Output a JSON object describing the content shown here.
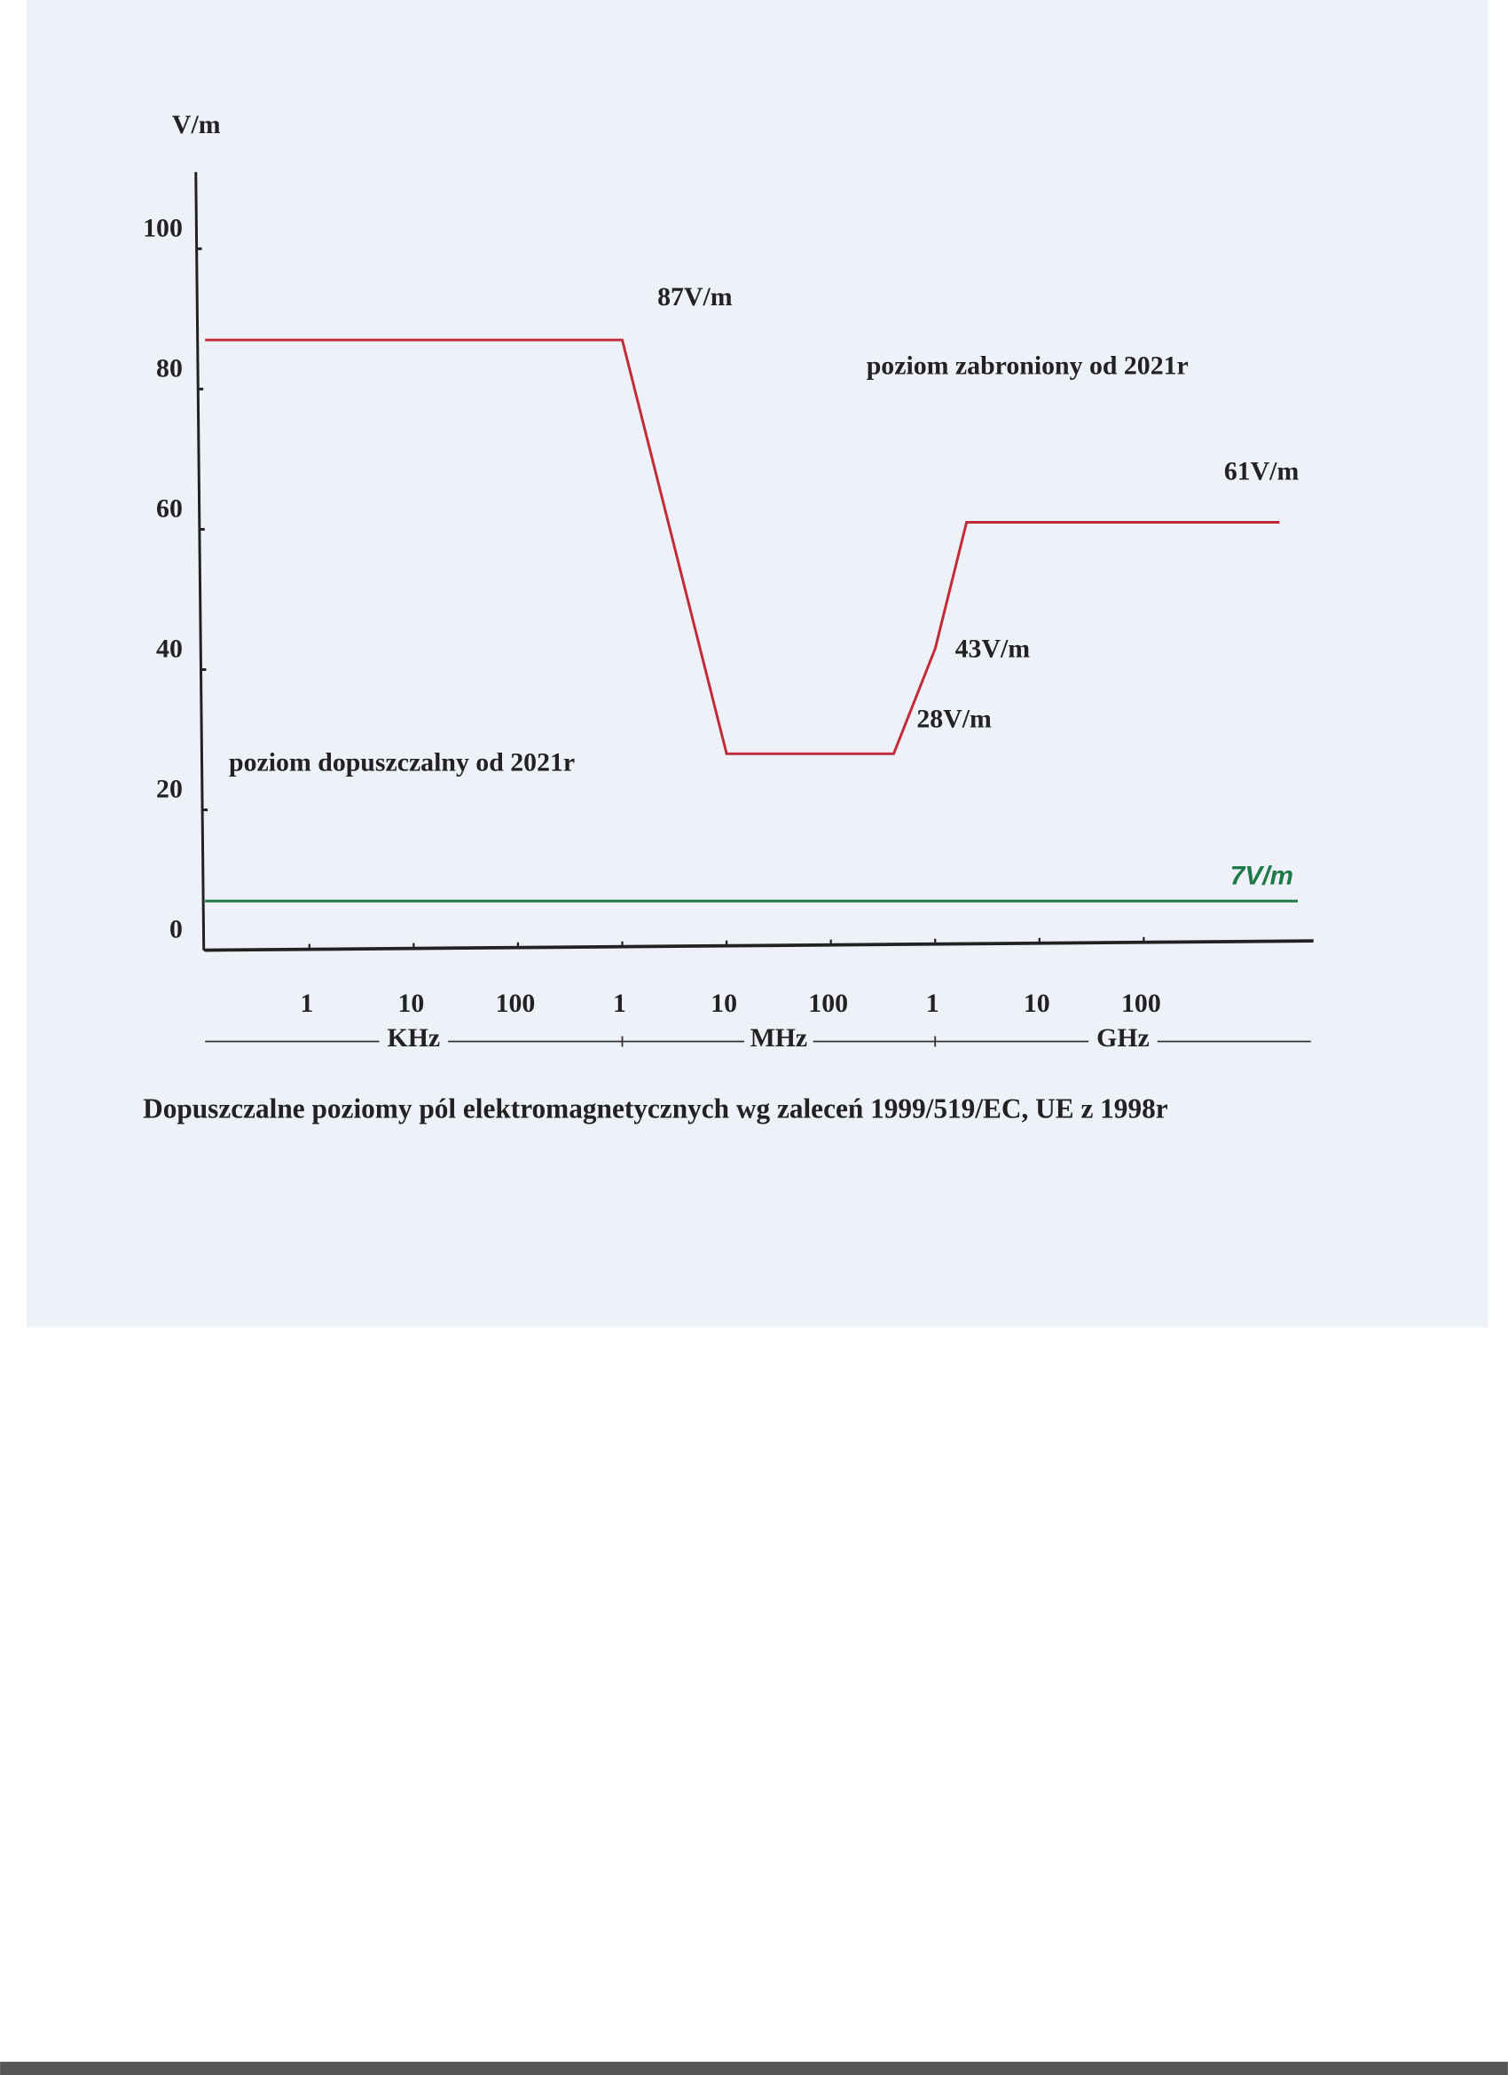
{
  "chart_data": {
    "type": "line",
    "title": "Dopuszczalne poziomy pól elektromagnetycznych wg zaleceń 1999/519/EC, UE z 1998r",
    "y_label": "V/m",
    "xscale": "log",
    "xlim": [
      100,
      4000000000000
    ],
    "xticks": [
      {
        "value": 1000,
        "label": "1"
      },
      {
        "value": 10000,
        "label": "10"
      },
      {
        "value": 100000,
        "label": "100"
      },
      {
        "value": 1000000,
        "label": "1"
      },
      {
        "value": 10000000,
        "label": "10"
      },
      {
        "value": 100000000,
        "label": "100"
      },
      {
        "value": 1000000000,
        "label": "1"
      },
      {
        "value": 10000000000,
        "label": "10"
      },
      {
        "value": 100000000000,
        "label": "100"
      }
    ],
    "x_groups": [
      {
        "label": "KHz",
        "from": 100,
        "to": 1000000
      },
      {
        "label": "MHz",
        "from": 1000000,
        "to": 1000000000
      },
      {
        "label": "GHz",
        "from": 1000000000,
        "to": 4000000000000
      }
    ],
    "ylim": [
      0,
      110
    ],
    "yticks": [
      0,
      20,
      40,
      60,
      80,
      100
    ],
    "series": [
      {
        "color": "#c22a3a",
        "x": [
          100,
          1000000,
          10000000,
          400000000,
          1000000000,
          2000000000,
          2000000000000
        ],
        "values": [
          87,
          87,
          28,
          28,
          43,
          61,
          61
        ]
      },
      {
        "color": "#1f7a4a",
        "x": [
          100,
          3000000000000
        ],
        "values": [
          7,
          7
        ]
      }
    ],
    "annotations": [
      {
        "text": "87V/m",
        "color": "#222222"
      },
      {
        "text": "poziom zabroniony od 2021r",
        "color": "#222222"
      },
      {
        "text": "61V/m",
        "color": "#222222"
      },
      {
        "text": "43V/m",
        "color": "#222222"
      },
      {
        "text": "28V/m",
        "color": "#222222"
      },
      {
        "text": "poziom dopuszczalny od 2021r",
        "color": "#222222"
      },
      {
        "text": "7V/m",
        "color": "#1f7a4a"
      }
    ]
  }
}
